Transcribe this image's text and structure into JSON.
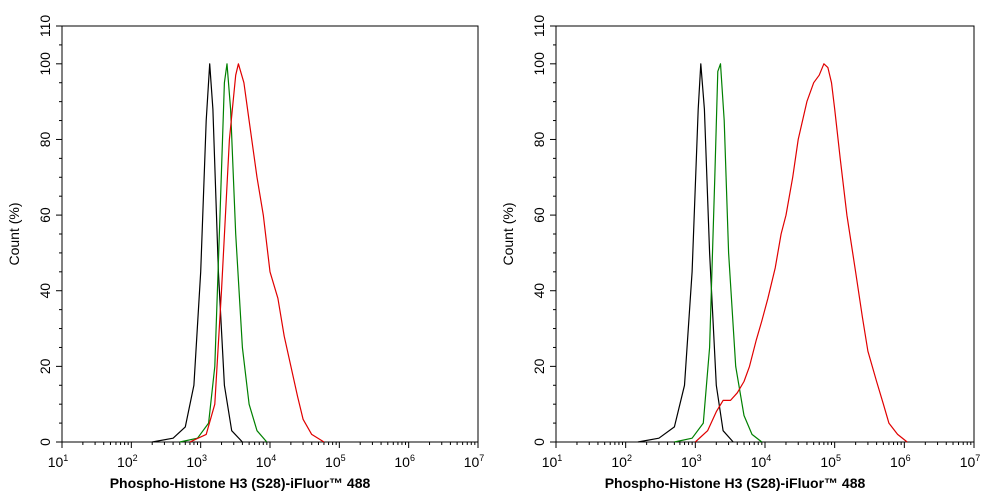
{
  "chart_data": [
    {
      "type": "line",
      "xlabel": "Phospho-Histone H3 (S28)-iFluor™ 488",
      "ylabel": "Count  (%)",
      "xscale": "log",
      "xlim_exp": [
        1,
        7
      ],
      "ylim": [
        0,
        110
      ],
      "x_ticks": [
        {
          "base": "10",
          "exp": "1"
        },
        {
          "base": "10",
          "exp": "2"
        },
        {
          "base": "10",
          "exp": "3"
        },
        {
          "base": "10",
          "exp": "4"
        },
        {
          "base": "10",
          "exp": "5"
        },
        {
          "base": "10",
          "exp": "6"
        },
        {
          "base": "10",
          "exp": "7"
        }
      ],
      "y_ticks": [
        0,
        20,
        40,
        60,
        80,
        100,
        110
      ],
      "grid": false,
      "series": [
        {
          "color": "#000000",
          "points": [
            [
              200,
              0
            ],
            [
              400,
              1
            ],
            [
              600,
              4
            ],
            [
              800,
              15
            ],
            [
              1000,
              45
            ],
            [
              1200,
              85
            ],
            [
              1350,
              100
            ],
            [
              1500,
              88
            ],
            [
              1800,
              45
            ],
            [
              2200,
              15
            ],
            [
              2800,
              3
            ],
            [
              4000,
              0
            ]
          ]
        },
        {
          "color": "#008000",
          "points": [
            [
              500,
              0
            ],
            [
              900,
              1
            ],
            [
              1300,
              5
            ],
            [
              1600,
              20
            ],
            [
              1900,
              60
            ],
            [
              2200,
              95
            ],
            [
              2400,
              100
            ],
            [
              2700,
              88
            ],
            [
              3200,
              55
            ],
            [
              4000,
              25
            ],
            [
              5000,
              10
            ],
            [
              6500,
              3
            ],
            [
              9000,
              0
            ]
          ]
        },
        {
          "color": "#e00000",
          "points": [
            [
              700,
              0
            ],
            [
              1200,
              2
            ],
            [
              1600,
              10
            ],
            [
              2000,
              40
            ],
            [
              2600,
              80
            ],
            [
              3200,
              97
            ],
            [
              3500,
              100
            ],
            [
              4200,
              95
            ],
            [
              5000,
              85
            ],
            [
              6500,
              70
            ],
            [
              8000,
              60
            ],
            [
              10000,
              45
            ],
            [
              13000,
              38
            ],
            [
              16000,
              28
            ],
            [
              20000,
              20
            ],
            [
              25000,
              12
            ],
            [
              30000,
              6
            ],
            [
              40000,
              2
            ],
            [
              60000,
              0
            ]
          ]
        }
      ]
    },
    {
      "type": "line",
      "xlabel": "Phospho-Histone H3 (S28)-iFluor™ 488",
      "ylabel": "Count  (%)",
      "xscale": "log",
      "xlim_exp": [
        1,
        7
      ],
      "ylim": [
        0,
        110
      ],
      "x_ticks": [
        {
          "base": "10",
          "exp": "1"
        },
        {
          "base": "10",
          "exp": "2"
        },
        {
          "base": "10",
          "exp": "3"
        },
        {
          "base": "10",
          "exp": "4"
        },
        {
          "base": "10",
          "exp": "5"
        },
        {
          "base": "10",
          "exp": "6"
        },
        {
          "base": "10",
          "exp": "7"
        }
      ],
      "y_ticks": [
        0,
        20,
        40,
        60,
        80,
        100,
        110
      ],
      "grid": false,
      "series": [
        {
          "color": "#000000",
          "points": [
            [
              150,
              0
            ],
            [
              300,
              1
            ],
            [
              500,
              4
            ],
            [
              700,
              15
            ],
            [
              900,
              45
            ],
            [
              1100,
              88
            ],
            [
              1200,
              100
            ],
            [
              1350,
              88
            ],
            [
              1600,
              50
            ],
            [
              2000,
              15
            ],
            [
              2500,
              3
            ],
            [
              3500,
              0
            ]
          ]
        },
        {
          "color": "#008000",
          "points": [
            [
              500,
              0
            ],
            [
              900,
              1
            ],
            [
              1300,
              5
            ],
            [
              1600,
              25
            ],
            [
              1900,
              70
            ],
            [
              2100,
              98
            ],
            [
              2300,
              100
            ],
            [
              2600,
              85
            ],
            [
              3000,
              50
            ],
            [
              3800,
              20
            ],
            [
              5000,
              7
            ],
            [
              6500,
              2
            ],
            [
              9000,
              0
            ]
          ]
        },
        {
          "color": "#e00000",
          "points": [
            [
              1000,
              0
            ],
            [
              1500,
              3
            ],
            [
              2000,
              8
            ],
            [
              2500,
              11
            ],
            [
              3200,
              11
            ],
            [
              4000,
              13
            ],
            [
              5000,
              16
            ],
            [
              6000,
              20
            ],
            [
              7500,
              27
            ],
            [
              9000,
              32
            ],
            [
              11000,
              38
            ],
            [
              14000,
              46
            ],
            [
              17000,
              55
            ],
            [
              20000,
              60
            ],
            [
              25000,
              70
            ],
            [
              30000,
              80
            ],
            [
              40000,
              90
            ],
            [
              50000,
              95
            ],
            [
              60000,
              97
            ],
            [
              70000,
              100
            ],
            [
              80000,
              99
            ],
            [
              90000,
              95
            ],
            [
              100000,
              88
            ],
            [
              120000,
              75
            ],
            [
              150000,
              60
            ],
            [
              200000,
              45
            ],
            [
              250000,
              33
            ],
            [
              300000,
              24
            ],
            [
              400000,
              16
            ],
            [
              500000,
              10
            ],
            [
              600000,
              5
            ],
            [
              800000,
              2
            ],
            [
              1100000,
              0
            ]
          ]
        }
      ]
    }
  ]
}
